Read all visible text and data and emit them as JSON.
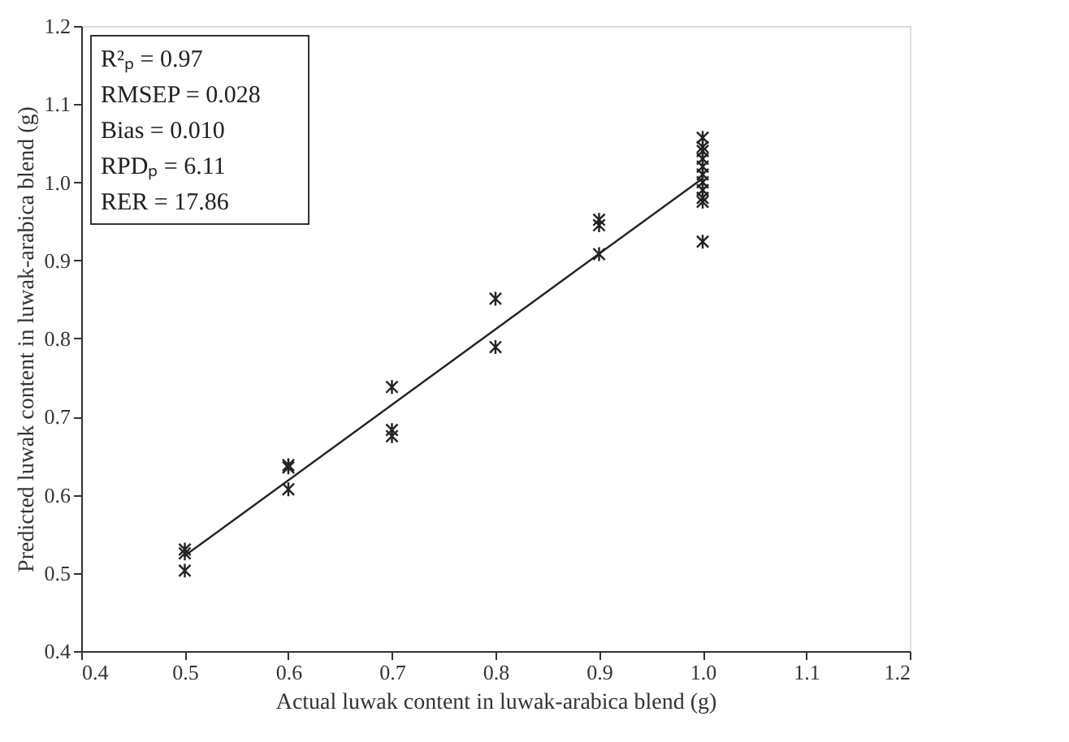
{
  "chart_data": {
    "type": "scatter",
    "xlabel": "Actual luwak content in luwak-arabica blend (g)",
    "ylabel": "Predicted luwak content in luwak-arabica blend (g)",
    "xlim": [
      0.4,
      1.2
    ],
    "ylim": [
      0.4,
      1.2
    ],
    "xticks": [
      {
        "value": 0.4,
        "label": "0.4"
      },
      {
        "value": 0.5,
        "label": "0.5"
      },
      {
        "value": 0.6,
        "label": "0.6"
      },
      {
        "value": 0.7,
        "label": "0.7"
      },
      {
        "value": 0.8,
        "label": "0.8"
      },
      {
        "value": 0.9,
        "label": "0.9"
      },
      {
        "value": 1.0,
        "label": "1.0"
      },
      {
        "value": 1.1,
        "label": "1.1"
      },
      {
        "value": 1.2,
        "label": "1.2"
      }
    ],
    "yticks": [
      {
        "value": 0.4,
        "label": "0.4"
      },
      {
        "value": 0.5,
        "label": "0.5"
      },
      {
        "value": 0.6,
        "label": "0.6"
      },
      {
        "value": 0.7,
        "label": "0.7"
      },
      {
        "value": 0.8,
        "label": "0.8"
      },
      {
        "value": 0.9,
        "label": "0.9"
      },
      {
        "value": 1.0,
        "label": "1.0"
      },
      {
        "value": 1.1,
        "label": "1.1"
      },
      {
        "value": 1.2,
        "label": "1.2"
      }
    ],
    "grid": false,
    "series": [
      {
        "color": "#222222",
        "marker": "cross",
        "x": [
          0.5,
          0.5,
          0.5,
          0.6,
          0.6,
          0.6,
          0.7,
          0.7,
          0.7,
          0.8,
          0.8,
          0.9,
          0.9,
          0.9,
          1.0,
          1.0,
          1.0,
          1.0,
          1.0,
          1.0,
          1.0,
          1.0,
          1.0,
          1.0,
          1.0
        ],
        "values": [
          0.53,
          0.525,
          0.503,
          0.638,
          0.635,
          0.607,
          0.738,
          0.683,
          0.675,
          0.851,
          0.789,
          0.952,
          0.945,
          0.908,
          1.057,
          1.045,
          1.04,
          1.03,
          1.02,
          1.01,
          1.0,
          0.99,
          0.98,
          0.975,
          0.924
        ]
      },
      {
        "type": "line",
        "color": "#222222",
        "line_style": "solid",
        "x": [
          0.5,
          1.0
        ],
        "values": [
          0.522,
          1.005
        ]
      }
    ],
    "annotations": [
      "R²ₚ = 0.97",
      "RMSEP = 0.028",
      "Bias = 0.010",
      "RPDₚ = 6.11",
      "RER = 17.86"
    ]
  }
}
